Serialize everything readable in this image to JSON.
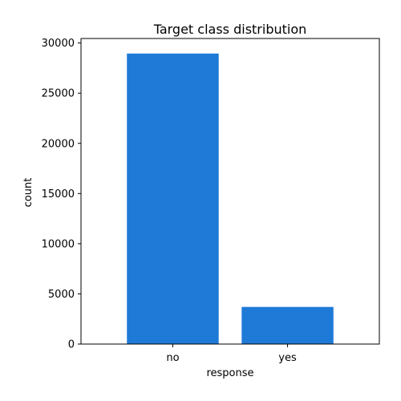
{
  "chart_data": {
    "type": "bar",
    "title": "Target class distribution",
    "xlabel": "response",
    "ylabel": "count",
    "categories": [
      "no",
      "yes"
    ],
    "values": [
      28950,
      3700
    ],
    "ylim": [
      0,
      30450
    ],
    "yticks": [
      0,
      5000,
      10000,
      15000,
      20000,
      25000,
      30000
    ],
    "ytick_labels": [
      "0",
      "5000",
      "10000",
      "15000",
      "20000",
      "25000",
      "30000"
    ],
    "bar_color": "#1f7ad7",
    "grid": false,
    "legend": "none"
  }
}
